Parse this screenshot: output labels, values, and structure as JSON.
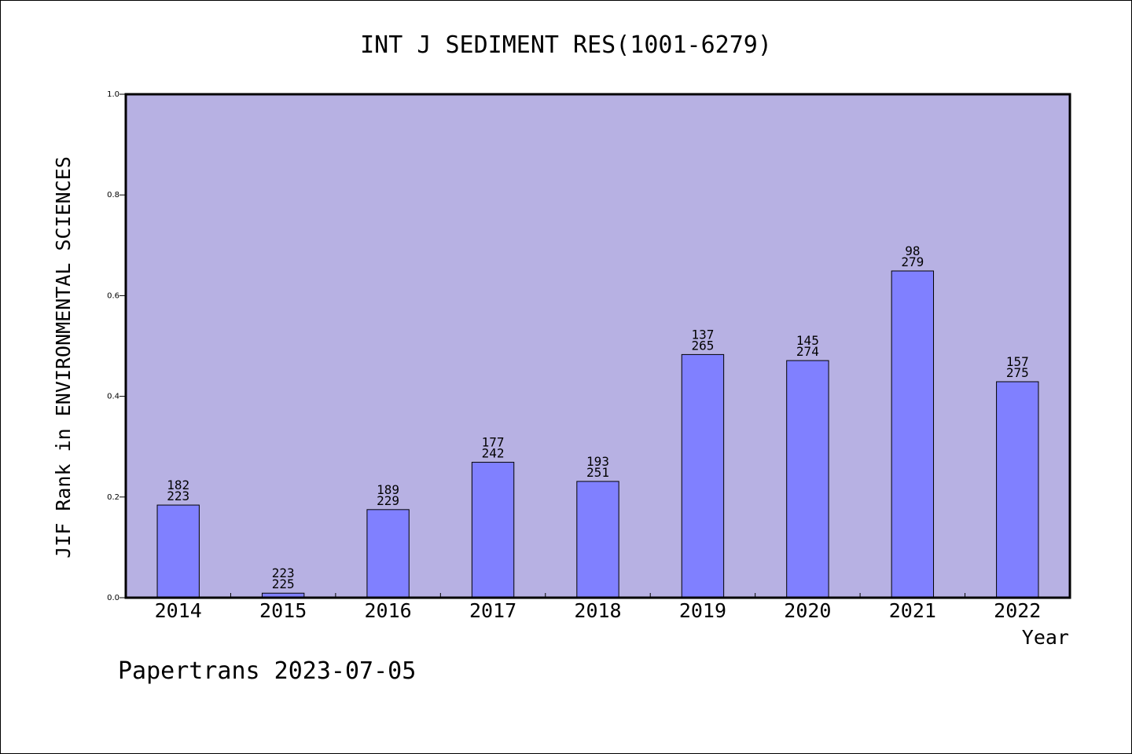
{
  "chart_data": {
    "type": "bar",
    "title": "INT J SEDIMENT RES(1001-6279)",
    "xlabel": "Year",
    "ylabel": "JIF Rank in ENVIRONMENTAL SCIENCES",
    "ylim": [
      0,
      1.0
    ],
    "yticks": [
      "0.0",
      "0.2",
      "0.4",
      "0.6",
      "0.8",
      "1.0"
    ],
    "grid": false,
    "categories": [
      "2014",
      "2015",
      "2016",
      "2017",
      "2018",
      "2019",
      "2020",
      "2021",
      "2022"
    ],
    "values": [
      0.184,
      0.009,
      0.175,
      0.269,
      0.231,
      0.483,
      0.471,
      0.649,
      0.429
    ],
    "rank": [
      "182",
      "223",
      "189",
      "177",
      "193",
      "137",
      "145",
      "98",
      "157"
    ],
    "total": [
      "223",
      "225",
      "229",
      "242",
      "251",
      "265",
      "274",
      "279",
      "275"
    ],
    "colors": {
      "plot_bg": "#b7b1e3",
      "bar": "#8080ff",
      "frame": "#000000"
    }
  },
  "footer": "Papertrans 2023-07-05"
}
